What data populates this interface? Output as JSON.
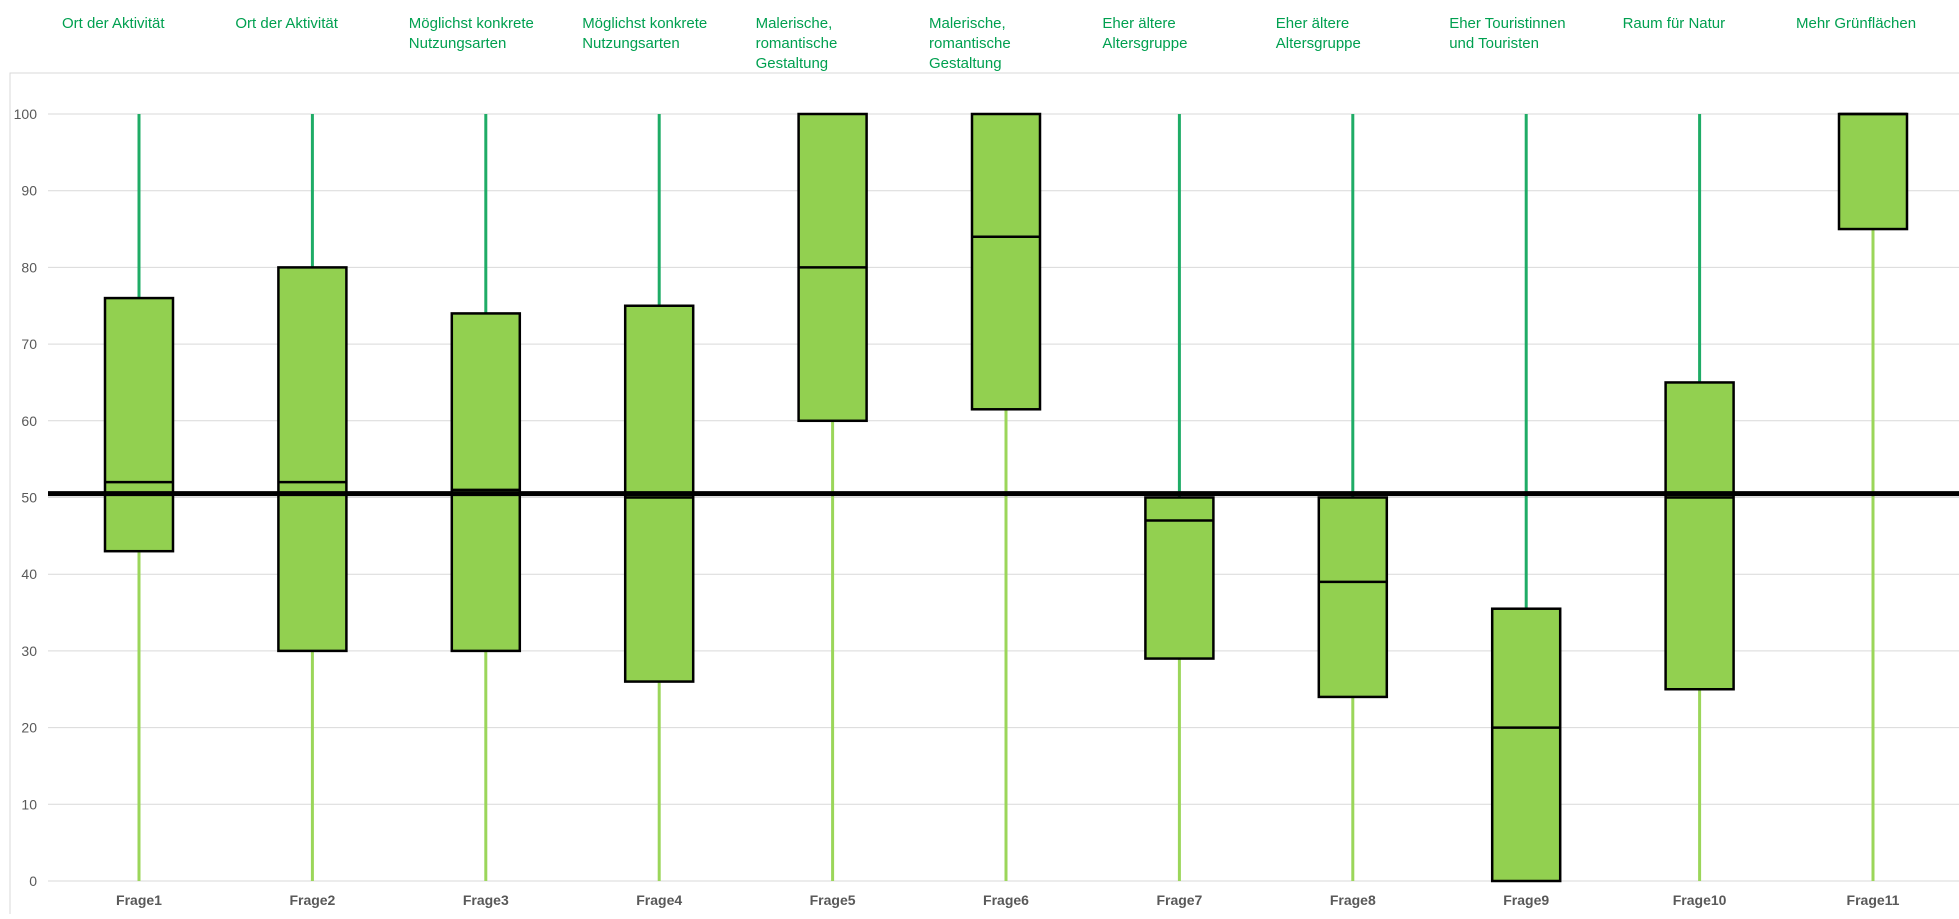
{
  "chart_data": {
    "type": "boxplot",
    "categories": [
      "Frage1",
      "Frage2",
      "Frage3",
      "Frage4",
      "Frage5",
      "Frage6",
      "Frage7",
      "Frage8",
      "Frage9",
      "Frage10",
      "Frage11"
    ],
    "top_labels": [
      [
        "Ort der Aktivität"
      ],
      [
        "Ort der Aktivität"
      ],
      [
        "Möglichst konkrete",
        "Nutzungsarten"
      ],
      [
        "Möglichst konkrete",
        "Nutzungsarten"
      ],
      [
        "Malerische,",
        "romantische",
        "Gestaltung"
      ],
      [
        "Malerische,",
        "romantische",
        "Gestaltung"
      ],
      [
        "Eher ältere",
        "Altersgruppe"
      ],
      [
        "Eher ältere",
        "Altersgruppe"
      ],
      [
        "Eher Touristinnen",
        "und Touristen"
      ],
      [
        "Raum für  Natur"
      ],
      [
        "Mehr Grünflächen"
      ]
    ],
    "boxes": [
      {
        "min": 0,
        "q1": 43,
        "median": 52,
        "q3": 76,
        "max": 100
      },
      {
        "min": 0,
        "q1": 30,
        "median": 52,
        "q3": 80,
        "max": 100
      },
      {
        "min": 0,
        "q1": 30,
        "median": 51,
        "q3": 74,
        "max": 100
      },
      {
        "min": 0,
        "q1": 26,
        "median": 50,
        "q3": 75,
        "max": 100
      },
      {
        "min": 0,
        "q1": 60,
        "median": 80,
        "q3": 100,
        "max": 100
      },
      {
        "min": 0,
        "q1": 61.5,
        "median": 84,
        "q3": 100,
        "max": 100
      },
      {
        "min": 0,
        "q1": 29,
        "median": 47,
        "q3": 50,
        "max": 100
      },
      {
        "min": 0,
        "q1": 24,
        "median": 39,
        "q3": 50,
        "max": 100
      },
      {
        "min": 0,
        "q1": 0,
        "median": 20,
        "q3": 35.5,
        "max": 100
      },
      {
        "min": 0,
        "q1": 25,
        "median": 50,
        "q3": 65,
        "max": 100
      },
      {
        "min": 0,
        "q1": 85,
        "median": 100,
        "q3": 100,
        "max": 100
      }
    ],
    "reference_line": 50.5,
    "ylim": [
      0,
      100
    ],
    "yticks": [
      0,
      10,
      20,
      30,
      40,
      50,
      60,
      70,
      80,
      90,
      100
    ],
    "grid": true,
    "colors": {
      "box_fill": "#92d050",
      "box_stroke": "#000000",
      "upper_whisker": "#1fac66",
      "lower_whisker": "#9bd65a",
      "label_text": "#00a050",
      "gridline": "#d9d9d9",
      "tick_text": "#595959",
      "reference_line": "#000000"
    }
  }
}
